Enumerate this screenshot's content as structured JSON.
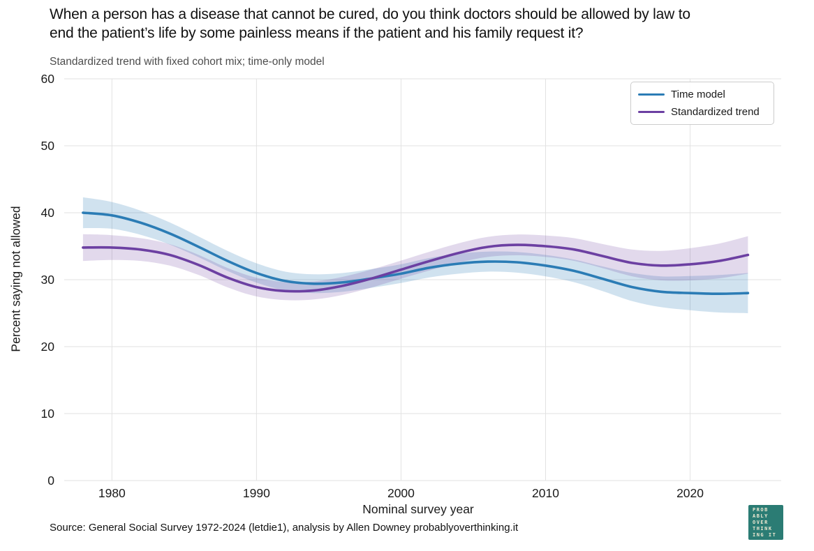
{
  "chart_data": {
    "type": "line",
    "title": "When a person has a disease that cannot be cured, do you think doctors should be allowed by law to end the patient’s life by some painless means if the patient and his family request it?",
    "title_lines": [
      "When a person has a disease that cannot be cured, do you think doctors should be allowed by law to",
      "end the patient’s life by some painless means if the patient and his family request it?"
    ],
    "subtitle": "Standardized trend with fixed cohort mix; time-only model",
    "xlabel": "Nominal survey year",
    "ylabel": "Percent saying not allowed",
    "xlim": [
      1976.7,
      2026.3
    ],
    "ylim": [
      0,
      60
    ],
    "xticks": [
      1980,
      1990,
      2000,
      2010,
      2020
    ],
    "yticks": [
      0,
      10,
      20,
      30,
      40,
      50,
      60
    ],
    "grid": true,
    "grid_color": "#e2e2e2",
    "legend_position": "upper right",
    "x": [
      1978,
      1980,
      1982,
      1984,
      1986,
      1988,
      1990,
      1992,
      1994,
      1996,
      1998,
      2000,
      2002,
      2004,
      2006,
      2008,
      2010,
      2012,
      2014,
      2016,
      2018,
      2020,
      2022,
      2024
    ],
    "series": [
      {
        "name": "Time model",
        "color": "#2b7cb5",
        "band_color": "rgba(43,124,181,0.22)",
        "values": [
          40.0,
          39.6,
          38.5,
          36.9,
          34.9,
          32.8,
          31.0,
          29.8,
          29.4,
          29.6,
          30.2,
          30.9,
          31.8,
          32.4,
          32.7,
          32.6,
          32.1,
          31.3,
          30.1,
          28.9,
          28.2,
          28.0,
          27.9,
          28.0
        ],
        "half_width": [
          2.3,
          2.0,
          1.8,
          1.65,
          1.55,
          1.5,
          1.45,
          1.4,
          1.4,
          1.4,
          1.4,
          1.4,
          1.45,
          1.5,
          1.5,
          1.55,
          1.6,
          1.7,
          1.85,
          2.1,
          2.3,
          2.55,
          2.8,
          3.0
        ]
      },
      {
        "name": "Standardized trend",
        "color": "#6c40a2",
        "band_color": "rgba(108,64,162,0.20)",
        "values": [
          34.8,
          34.8,
          34.5,
          33.7,
          32.2,
          30.3,
          28.9,
          28.3,
          28.4,
          29.1,
          30.2,
          31.5,
          32.8,
          34.0,
          34.9,
          35.2,
          35.0,
          34.5,
          33.5,
          32.5,
          32.1,
          32.3,
          32.8,
          33.7
        ],
        "half_width": [
          2.0,
          1.85,
          1.7,
          1.6,
          1.5,
          1.45,
          1.4,
          1.35,
          1.35,
          1.35,
          1.35,
          1.35,
          1.4,
          1.45,
          1.5,
          1.55,
          1.6,
          1.7,
          1.8,
          2.0,
          2.2,
          2.4,
          2.6,
          2.8
        ]
      }
    ]
  },
  "footer": {
    "source": "Source: General Social Survey 1972-2024 (letdie1), analysis by Allen Downey probablyoverthinking.it"
  },
  "logo": {
    "lines": [
      "PROB",
      "ABLY",
      "OVER",
      "THINK",
      "ING IT"
    ],
    "bg": "#2b7c74",
    "fg": "#efe9d2"
  }
}
